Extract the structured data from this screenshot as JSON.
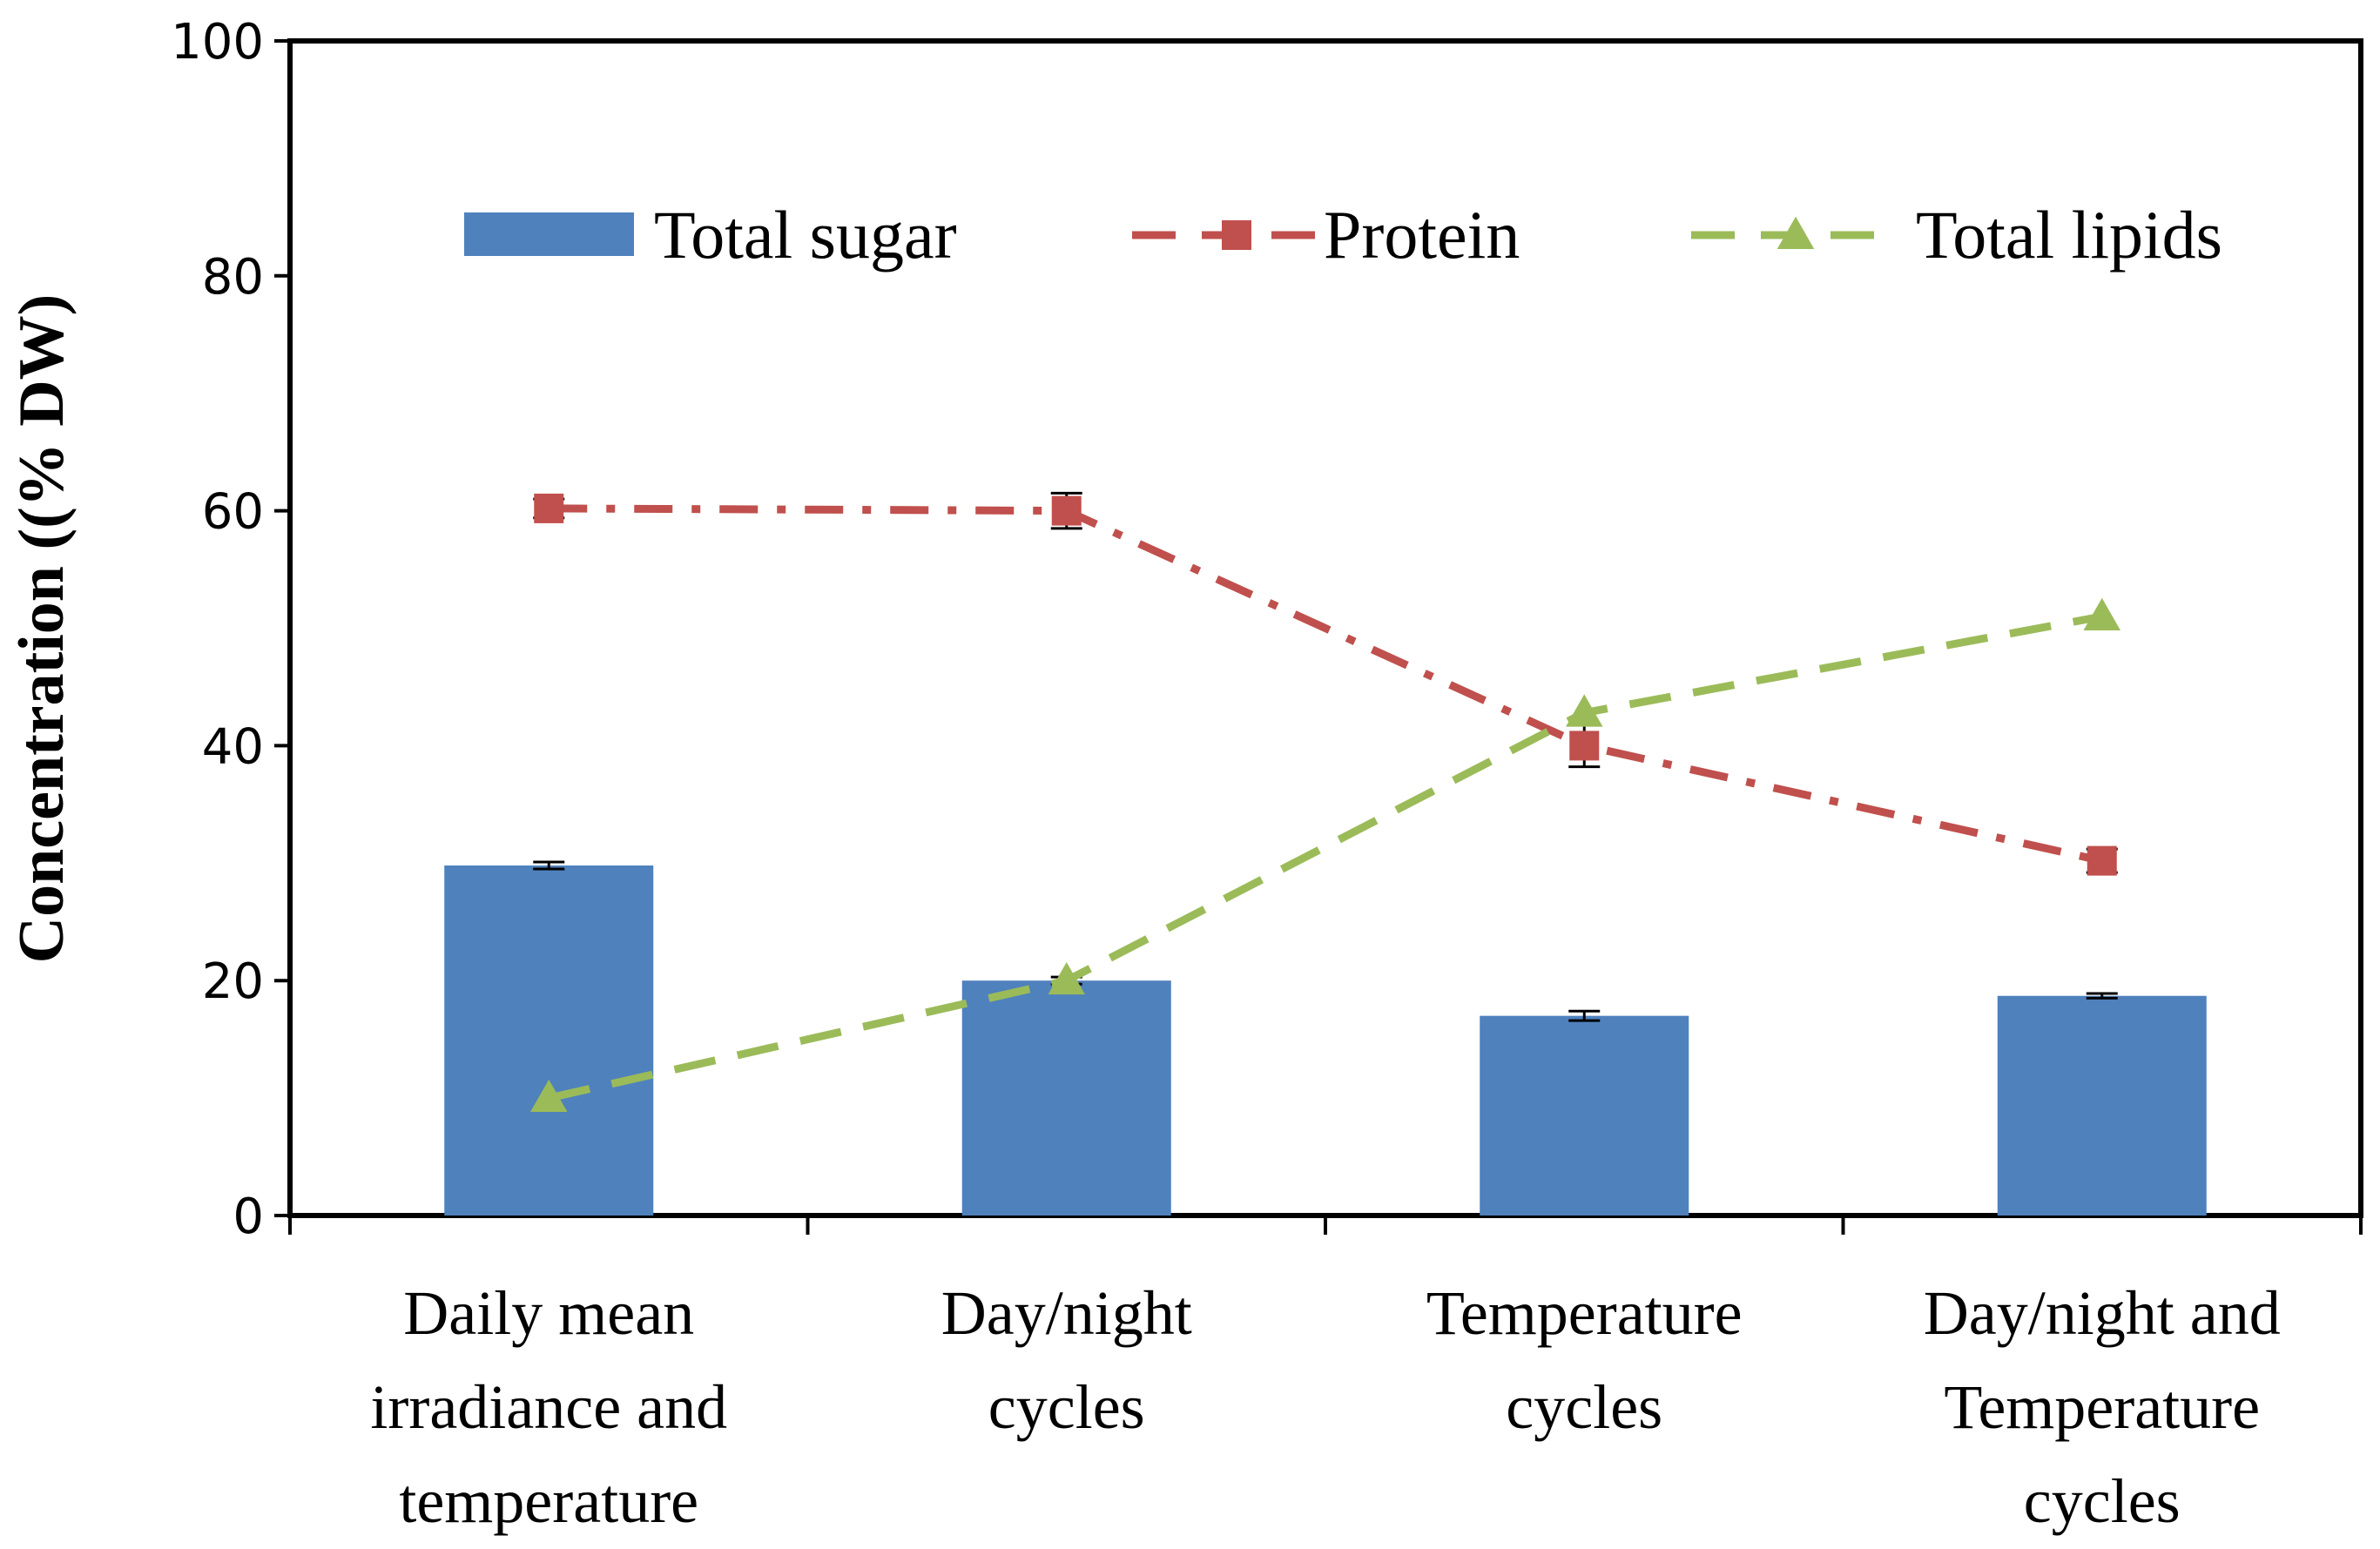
{
  "chart_data": {
    "type": "bar",
    "title": "",
    "xlabel": "",
    "ylabel": "Concentration ((% DW)",
    "ylim": [
      0,
      100
    ],
    "yticks": [
      0,
      20,
      40,
      60,
      80,
      100
    ],
    "grid": false,
    "legend_position": "top",
    "categories": [
      [
        "Daily mean",
        "irradiance and",
        "temperature"
      ],
      [
        "Day/night",
        "cycles"
      ],
      [
        "Temperature",
        "cycles"
      ],
      [
        "Day/night and",
        "Temperature",
        "cycles"
      ]
    ],
    "series": [
      {
        "name": "Total sugar",
        "kind": "bar",
        "color": "#4F81BD",
        "values": [
          29.8,
          20.0,
          17.0,
          18.7
        ],
        "errors": [
          0.3,
          0.3,
          0.4,
          0.2
        ]
      },
      {
        "name": "Protein",
        "kind": "line",
        "line_style": "dash-dot",
        "marker": "square",
        "color": "#C0504D",
        "values": [
          60.2,
          60.0,
          40.0,
          30.2
        ],
        "errors": [
          0.8,
          1.5,
          1.8,
          1.0
        ]
      },
      {
        "name": "Total lipids",
        "kind": "line",
        "line_style": "dashed",
        "marker": "triangle",
        "color": "#9BBB59",
        "values": [
          10.0,
          20.0,
          42.8,
          51.0
        ],
        "errors": [
          0,
          0,
          0,
          0
        ]
      }
    ]
  }
}
